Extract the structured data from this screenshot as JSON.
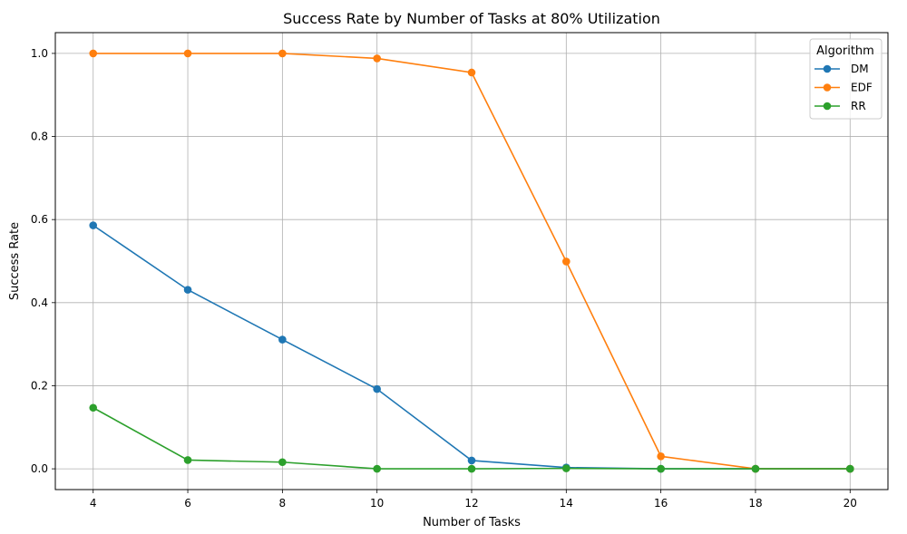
{
  "chart_data": {
    "type": "line",
    "title": "Success Rate by Number of Tasks at 80% Utilization",
    "xlabel": "Number of Tasks",
    "ylabel": "Success Rate",
    "x": [
      4,
      6,
      8,
      10,
      12,
      14,
      16,
      18,
      20
    ],
    "xlim": [
      3.2,
      20.8
    ],
    "ylim": [
      -0.05,
      1.05
    ],
    "xticks": [
      4,
      6,
      8,
      10,
      12,
      14,
      16,
      18,
      20
    ],
    "yticks": [
      0.0,
      0.2,
      0.4,
      0.6,
      0.8,
      1.0
    ],
    "ytick_labels": [
      "0.0",
      "0.2",
      "0.4",
      "0.6",
      "0.8",
      "1.0"
    ],
    "grid": true,
    "legend": {
      "title": "Algorithm",
      "placement": "top-right"
    },
    "series": [
      {
        "name": "DM",
        "color": "#1f77b4",
        "values": [
          0.586,
          0.431,
          0.311,
          0.192,
          0.02,
          0.003,
          0.0,
          0.0,
          0.0
        ]
      },
      {
        "name": "EDF",
        "color": "#ff7f0e",
        "values": [
          1.0,
          1.0,
          1.0,
          0.988,
          0.954,
          0.499,
          0.03,
          0.0,
          0.0
        ]
      },
      {
        "name": "RR",
        "color": "#2ca02c",
        "values": [
          0.147,
          0.021,
          0.016,
          0.0,
          0.0,
          0.001,
          0.0,
          0.0,
          0.0
        ]
      }
    ]
  }
}
